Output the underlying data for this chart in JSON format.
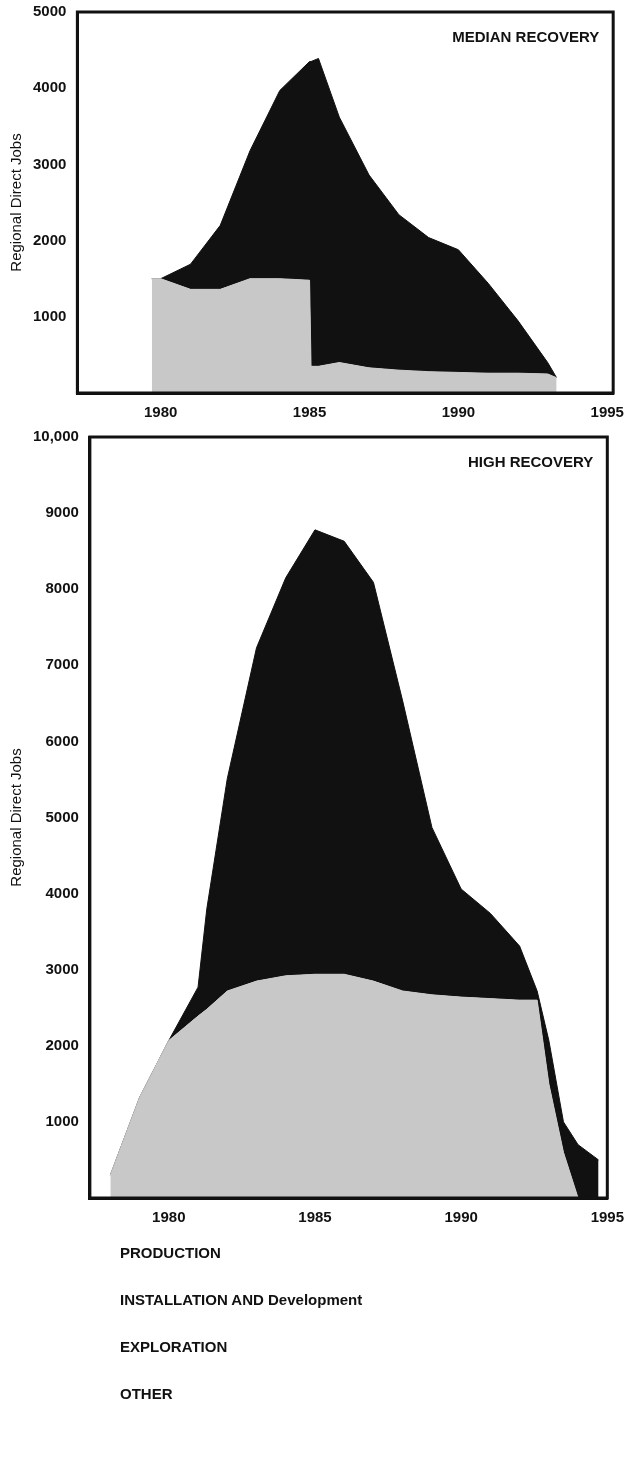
{
  "chart_data": [
    {
      "type": "area",
      "title": "MEDIAN RECOVERY",
      "ylabel": "Regional Direct Jobs",
      "stacked": true,
      "legend": false,
      "grid": false,
      "x": [
        1979.7,
        1980,
        1981,
        1982,
        1983,
        1984,
        1985,
        1985.05,
        1985.3,
        1986,
        1987,
        1988,
        1989,
        1990,
        1991,
        1992,
        1993,
        1993.3
      ],
      "series": [
        {
          "color": "#c8c8c8",
          "values": [
            1500,
            1500,
            1360,
            1360,
            1500,
            1500,
            1480,
            350,
            350,
            400,
            330,
            300,
            280,
            270,
            260,
            260,
            250,
            200
          ]
        },
        {
          "color": "#111111",
          "values": [
            0,
            0,
            330,
            840,
            1680,
            2470,
            2870,
            4000,
            4040,
            3220,
            2530,
            2040,
            1760,
            1610,
            1180,
            690,
            150,
            0
          ]
        }
      ],
      "xlim": [
        1977.2,
        1995.2
      ],
      "xticks": [
        1980,
        1985,
        1990,
        1995
      ],
      "ylim": [
        0,
        5000
      ],
      "yticks": [
        1000,
        2000,
        3000,
        4000,
        5000
      ]
    },
    {
      "type": "area",
      "title": "HIGH RECOVERY",
      "ylabel": "Regional Direct Jobs",
      "stacked": true,
      "legend": false,
      "grid": false,
      "x": [
        1978,
        1979,
        1980,
        1981,
        1981.3,
        1982,
        1983,
        1984,
        1985,
        1986,
        1987,
        1988,
        1989,
        1990,
        1991,
        1992,
        1992.6,
        1993,
        1993.5,
        1994,
        1994.7
      ],
      "series": [
        {
          "color": "#c8c8c8",
          "values": [
            300,
            1320,
            2070,
            2390,
            2480,
            2720,
            2850,
            2920,
            2940,
            2940,
            2850,
            2720,
            2670,
            2640,
            2620,
            2600,
            2600,
            1500,
            600,
            0,
            0
          ]
        },
        {
          "color": "#111111",
          "values": [
            0,
            0,
            0,
            380,
            1320,
            2790,
            4380,
            5230,
            5840,
            5690,
            5240,
            3810,
            2200,
            1420,
            1120,
            710,
            120,
            570,
            400,
            700,
            500
          ]
        }
      ],
      "xlim": [
        1977.3,
        1995
      ],
      "xticks": [
        1980,
        1985,
        1990,
        1995
      ],
      "ylim": [
        0,
        10000
      ],
      "yticks": [
        1000,
        2000,
        3000,
        4000,
        5000,
        6000,
        7000,
        8000,
        9000,
        {
          "value": 10000,
          "label": "10,000"
        }
      ],
      "annotations": [
        "PRODUCTION",
        "INSTALLATION AND Development",
        "EXPLORATION",
        "OTHER"
      ]
    }
  ]
}
